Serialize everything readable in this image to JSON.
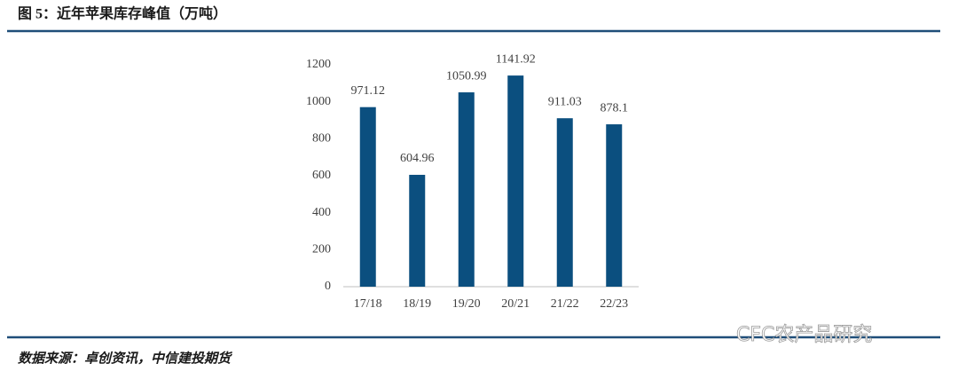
{
  "chart_data": {
    "type": "bar",
    "title": "图 5：近年苹果库存峰值（万吨）",
    "categories": [
      "17/18",
      "18/19",
      "19/20",
      "20/21",
      "21/22",
      "22/23"
    ],
    "values": [
      971.12,
      604.96,
      1050.99,
      1141.92,
      911.03,
      878.1
    ],
    "color": "#0b4f7f",
    "ylim": [
      0,
      1200
    ],
    "yticks": [
      0,
      200,
      400,
      600,
      800,
      1000,
      1200
    ],
    "grid": false,
    "source": "数据来源：卓创资讯，中信建投期货",
    "watermark": "CFC农产品研究"
  }
}
